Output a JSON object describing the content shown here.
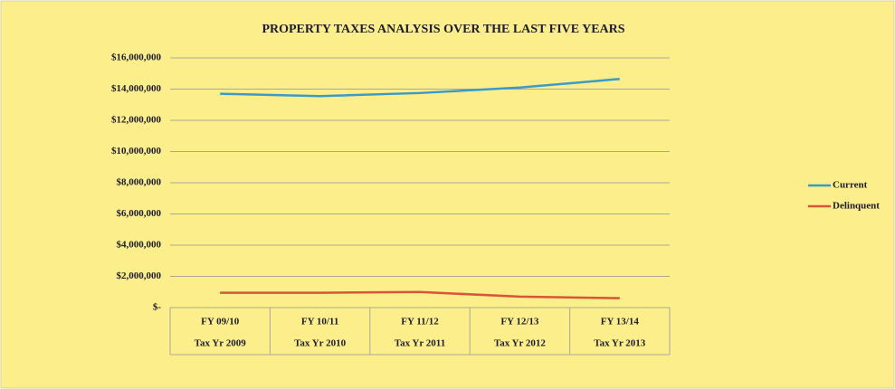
{
  "chart_data": {
    "type": "line",
    "title": "PROPERTY TAXES ANALYSIS OVER THE LAST FIVE YEARS",
    "categories": [
      "FY 09/10",
      "FY 10/11",
      "FY 11/12",
      "FY 12/13",
      "FY 13/14"
    ],
    "subcategories": [
      "Tax Yr 2009",
      "Tax Yr 2010",
      "Tax Yr 2011",
      "Tax Yr 2012",
      "Tax Yr 2013"
    ],
    "series": [
      {
        "name": "Current",
        "color": "#3b9bc8",
        "values": [
          13700000,
          13550000,
          13750000,
          14100000,
          14650000
        ]
      },
      {
        "name": "Delinquent",
        "color": "#d9543a",
        "values": [
          950000,
          950000,
          1000000,
          700000,
          600000
        ]
      }
    ],
    "ylim": [
      0,
      16000000
    ],
    "yticks": [
      {
        "value": 0,
        "label": "$-"
      },
      {
        "value": 2000000,
        "label": "$2,000,000"
      },
      {
        "value": 4000000,
        "label": "$4,000,000"
      },
      {
        "value": 6000000,
        "label": "$6,000,000"
      },
      {
        "value": 8000000,
        "label": "$8,000,000"
      },
      {
        "value": 10000000,
        "label": "$10,000,000"
      },
      {
        "value": 12000000,
        "label": "$12,000,000"
      },
      {
        "value": 14000000,
        "label": "$14,000,000"
      },
      {
        "value": 16000000,
        "label": "$16,000,000"
      }
    ],
    "grid": true,
    "legend": "right"
  }
}
